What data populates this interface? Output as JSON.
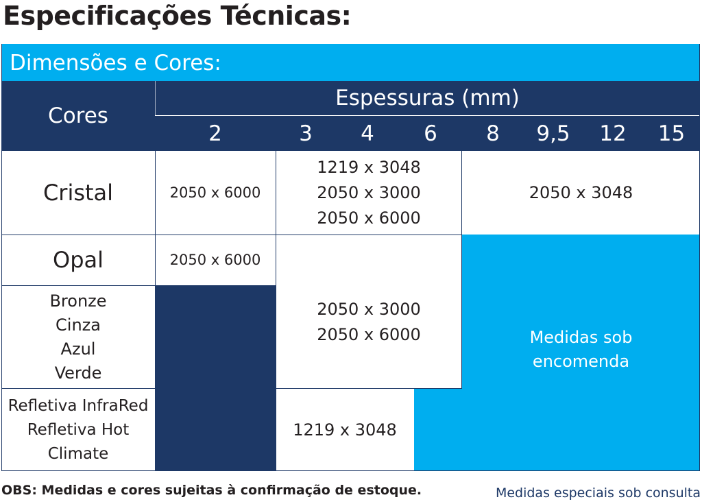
{
  "title": "Especificações Técnicas:",
  "section_title": "Dimensões e Cores:",
  "table": {
    "col_header_cores": "Cores",
    "col_header_thickness": "Espessuras (mm)",
    "thickness_values": [
      "2",
      "3",
      "4",
      "6",
      "8",
      "9,5",
      "12",
      "15"
    ],
    "rows": {
      "cristal": {
        "label": "Cristal",
        "dim_2mm": "2050 x 6000",
        "dim_3_6_line1": "1219 x 3048",
        "dim_3_6_line2": "2050 x 3000",
        "dim_3_6_line3": "2050 x 6000",
        "dim_8_15": "2050 x 3048"
      },
      "opal": {
        "label": "Opal",
        "dim_2mm": "2050 x 6000"
      },
      "colors": {
        "label_line1": "Bronze",
        "label_line2": "Cinza",
        "label_line3": "Azul",
        "label_line4": "Verde"
      },
      "opal_colors_dim_line1": "2050 x 3000",
      "opal_colors_dim_line2": "2050 x 6000",
      "refletiva": {
        "label_line1": "Refletiva InfraRed",
        "label_line2": "Refletiva Hot",
        "label_line3": "Climate",
        "dim_3_6": "1219 x 3048"
      },
      "custom_line1": "Medidas sob",
      "custom_line2": "encomenda"
    }
  },
  "footer": {
    "obs": "OBS: Medidas e cores sujeitas à confirmação de estoque.",
    "special": "Medidas especiais sob consulta"
  },
  "colors": {
    "navy": "#1d3866",
    "light_blue": "#00aeef"
  }
}
